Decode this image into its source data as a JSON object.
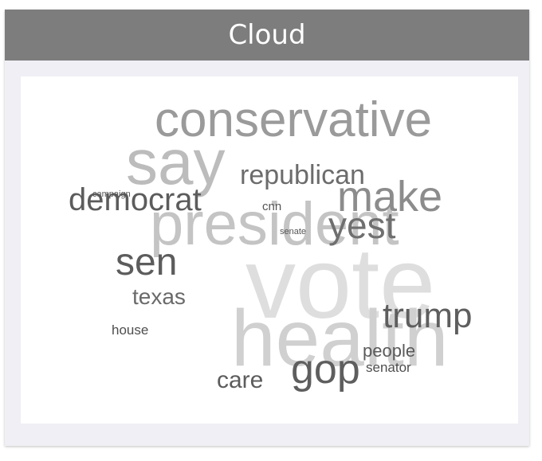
{
  "panel": {
    "title": "Cloud"
  },
  "cloud": {
    "words": [
      {
        "text": "vote",
        "color": "#dedede"
      },
      {
        "text": "health",
        "color": "#d0d0d0"
      },
      {
        "text": "president",
        "color": "#c4c4c4"
      },
      {
        "text": "say",
        "color": "#bcbcbc"
      },
      {
        "text": "conservative",
        "color": "#9a9a9a"
      },
      {
        "text": "make",
        "color": "#8c8c8c"
      },
      {
        "text": "yest",
        "color": "#6f6f6f"
      },
      {
        "text": "republican",
        "color": "#6c6c6c"
      },
      {
        "text": "democrat",
        "color": "#5c5c5c"
      },
      {
        "text": "sen",
        "color": "#5c5c5c"
      },
      {
        "text": "trump",
        "color": "#5e5e5e"
      },
      {
        "text": "gop",
        "color": "#5e5e5e"
      },
      {
        "text": "texas",
        "color": "#6a6a6a"
      },
      {
        "text": "care",
        "color": "#5c5c5c"
      },
      {
        "text": "people",
        "color": "#5a5a5a"
      },
      {
        "text": "senator",
        "color": "#4e4e4e"
      },
      {
        "text": "house",
        "color": "#4e4e4e"
      },
      {
        "text": "cnn",
        "color": "#555555"
      },
      {
        "text": "campaign",
        "color": "#555555"
      },
      {
        "text": "senate",
        "color": "#555555"
      }
    ]
  }
}
